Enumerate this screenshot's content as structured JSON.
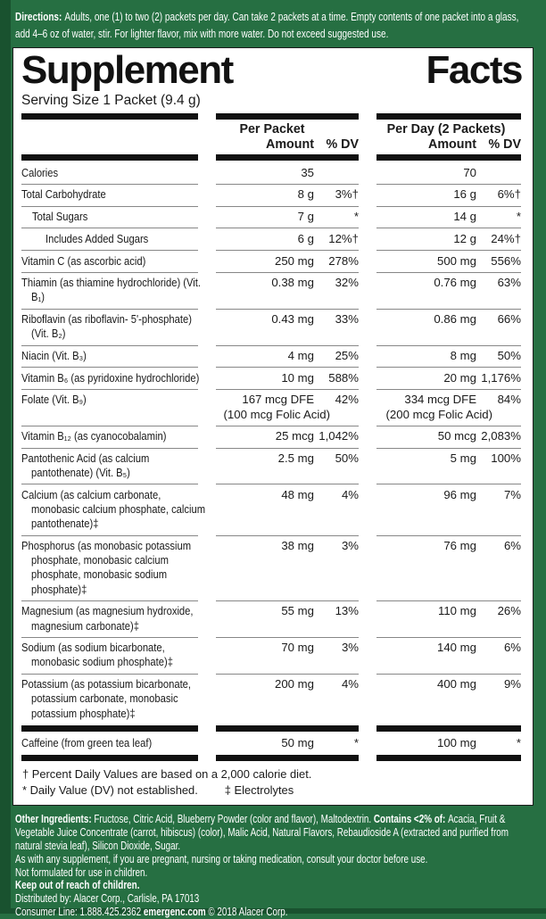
{
  "colors": {
    "label_green": "#266f42",
    "edge_green": "#19522f",
    "panel_white": "#ffffff",
    "bar_black": "#111111",
    "rule_gray": "#878787",
    "text_black": "#1a1a1a",
    "text_white": "#ffffff"
  },
  "directions": {
    "heading": "Directions:",
    "body": "Adults, one (1) to two (2) packets per day. Can take 2 packets at a time. Empty contents of one packet into a glass, add 4–6 oz of water, stir. For lighter flavor, mix with more water. Do not exceed suggested use."
  },
  "supplement_facts": {
    "title_left": "Supplement",
    "title_right": "Facts",
    "serving_size": "Serving Size 1 Packet (9.4 g)",
    "columns": {
      "per_packet": {
        "title": "Per Packet",
        "amount_label": "Amount",
        "dv_label": "% DV"
      },
      "per_day": {
        "title": "Per Day (2 Packets)",
        "amount_label": "Amount",
        "dv_label": "% DV"
      }
    },
    "rows": [
      {
        "label": "Calories",
        "indent": 0,
        "pp_amount": "35",
        "pp_dv": "",
        "pd_amount": "70",
        "pd_dv": ""
      },
      {
        "label": "Total Carbohydrate",
        "indent": 0,
        "pp_amount": "8 g",
        "pp_dv": "3%†",
        "pd_amount": "16 g",
        "pd_dv": "6%†"
      },
      {
        "label": "Total Sugars",
        "indent": 1,
        "pp_amount": "7 g",
        "pp_dv": "*",
        "pd_amount": "14 g",
        "pd_dv": "*"
      },
      {
        "label": "Includes Added Sugars",
        "indent": 2,
        "pp_amount": "6 g",
        "pp_dv": "12%†",
        "pd_amount": "12 g",
        "pd_dv": "24%†"
      },
      {
        "label": "Vitamin C (as ascorbic acid)",
        "indent": 0,
        "pp_amount": "250 mg",
        "pp_dv": "278%",
        "pd_amount": "500 mg",
        "pd_dv": "556%"
      },
      {
        "label": "Thiamin (as thiamine hydrochloride) (Vit. B₁)",
        "indent": 0,
        "pp_amount": "0.38 mg",
        "pp_dv": "32%",
        "pd_amount": "0.76 mg",
        "pd_dv": "63%"
      },
      {
        "label": "Riboflavin (as riboflavin- 5'-phosphate) (Vit. B₂)",
        "indent": 0,
        "pp_amount": "0.43 mg",
        "pp_dv": "33%",
        "pd_amount": "0.86 mg",
        "pd_dv": "66%"
      },
      {
        "label": "Niacin (Vit. B₃)",
        "indent": 0,
        "pp_amount": "4 mg",
        "pp_dv": "25%",
        "pd_amount": "8 mg",
        "pd_dv": "50%"
      },
      {
        "label": "Vitamin B₆ (as pyridoxine hydrochloride)",
        "indent": 0,
        "pp_amount": "10 mg",
        "pp_dv": "588%",
        "pd_amount": "20 mg",
        "pd_dv": "1,176%"
      },
      {
        "label": "Folate (Vit. B₉)",
        "indent": 0,
        "pp_amount": "167 mcg DFE",
        "pp_note": "(100 mcg Folic Acid)",
        "pp_dv": "42%",
        "pd_amount": "334 mcg DFE",
        "pd_note": "(200 mcg Folic Acid)",
        "pd_dv": "84%"
      },
      {
        "label": "Vitamin B₁₂ (as cyanocobalamin)",
        "indent": 0,
        "pp_amount": "25 mcg",
        "pp_dv": "1,042%",
        "pd_amount": "50 mcg",
        "pd_dv": "2,083%"
      },
      {
        "label": "Pantothenic Acid (as calcium pantothenate) (Vit. B₅)",
        "indent": 0,
        "pp_amount": "2.5 mg",
        "pp_dv": "50%",
        "pd_amount": "5 mg",
        "pd_dv": "100%"
      },
      {
        "label": "Calcium (as calcium carbonate, monobasic calcium phosphate, calcium pantothenate)‡",
        "indent": 0,
        "pp_amount": "48 mg",
        "pp_dv": "4%",
        "pd_amount": "96 mg",
        "pd_dv": "7%"
      },
      {
        "label": "Phosphorus (as monobasic potassium phosphate, monobasic calcium phosphate, monobasic sodium phosphate)‡",
        "indent": 0,
        "pp_amount": "38 mg",
        "pp_dv": "3%",
        "pd_amount": "76 mg",
        "pd_dv": "6%"
      },
      {
        "label": "Magnesium (as magnesium hydroxide, magnesium carbonate)‡",
        "indent": 0,
        "pp_amount": "55 mg",
        "pp_dv": "13%",
        "pd_amount": "110 mg",
        "pd_dv": "26%"
      },
      {
        "label": "Sodium (as sodium bicarbonate, monobasic sodium phosphate)‡",
        "indent": 0,
        "pp_amount": "70 mg",
        "pp_dv": "3%",
        "pd_amount": "140 mg",
        "pd_dv": "6%"
      },
      {
        "label": "Potassium (as potassium bicarbonate, potassium carbonate, monobasic potassium phosphate)‡",
        "indent": 0,
        "pp_amount": "200 mg",
        "pp_dv": "4%",
        "pd_amount": "400 mg",
        "pd_dv": "9%",
        "nosep": true
      },
      {
        "label": "Caffeine (from green tea leaf)",
        "indent": 0,
        "pp_amount": "50 mg",
        "pp_dv": "*",
        "pd_amount": "100 mg",
        "pd_dv": "*",
        "thick_before": true,
        "thick_after": true,
        "nosep": true
      }
    ],
    "footnotes": {
      "daily_values": "† Percent Daily Values are based on a 2,000 calorie diet.",
      "dv_not_established": "* Daily Value (DV) not established.",
      "electrolytes": "‡ Electrolytes"
    }
  },
  "bottom": {
    "lines": [
      {
        "segments": [
          {
            "bold": true,
            "text": "Other Ingredients: "
          },
          {
            "text": "Fructose, Citric Acid, Blueberry Powder (color and flavor), Maltodextrin. "
          },
          {
            "bold": true,
            "text": "Contains <2% of: "
          },
          {
            "text": "Acacia, Fruit & Vegetable Juice Concentrate (carrot, hibiscus) (color), Malic Acid, Natural Flavors, Rebaudioside A (extracted and purified from natural stevia leaf), Silicon Dioxide, Sugar."
          }
        ]
      },
      {
        "segments": [
          {
            "text": "As with any supplement, if you are pregnant, nursing or taking medication, consult your doctor before use."
          }
        ]
      },
      {
        "segments": [
          {
            "text": "Not formulated for use in children."
          }
        ]
      },
      {
        "segments": [
          {
            "bold": true,
            "text": "Keep out of reach of children."
          }
        ]
      },
      {
        "segments": [
          {
            "text": "Distributed by: Alacer Corp., Carlisle, PA 17013"
          }
        ]
      },
      {
        "segments": [
          {
            "text": "Consumer Line: 1.888.425.2362  "
          },
          {
            "bold": true,
            "text": "emergenc.com"
          },
          {
            "text": "  © 2018 Alacer Corp."
          }
        ]
      }
    ]
  }
}
